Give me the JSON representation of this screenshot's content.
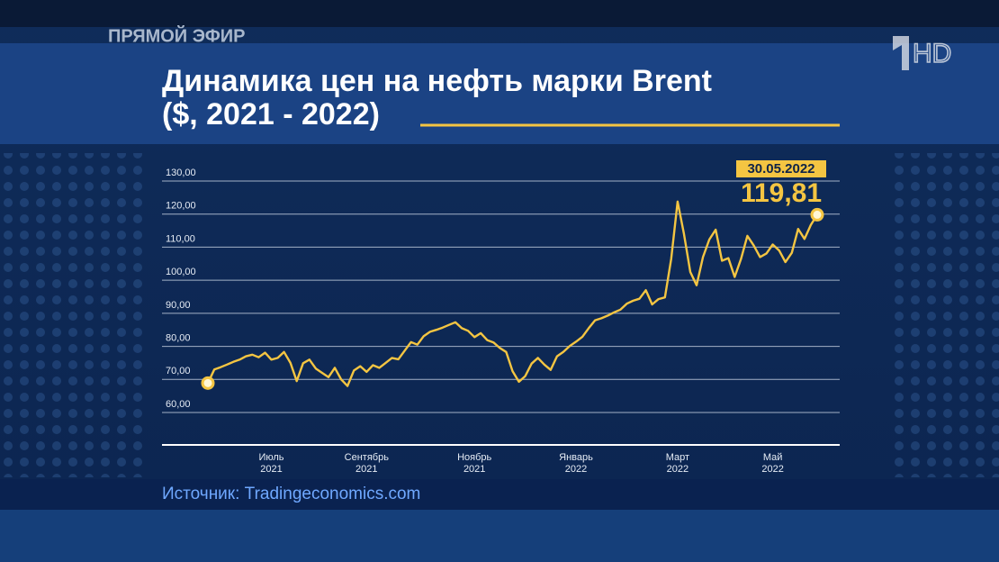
{
  "header": {
    "live": "ПРЯМОЙ ЭФИР",
    "channel": "HD"
  },
  "chart_data": {
    "type": "line",
    "title": "Динамика цен на нефть марки Brent",
    "subtitle": "($, 2021 - 2022)",
    "categories": [
      null,
      null,
      null,
      null,
      null,
      null,
      null,
      null,
      null,
      null,
      "Июль 2021",
      null,
      null,
      null,
      null,
      null,
      null,
      null,
      null,
      null,
      null,
      null,
      null,
      null,
      null,
      "Сентябрь 2021",
      null,
      null,
      null,
      null,
      null,
      null,
      null,
      null,
      null,
      null,
      null,
      null,
      null,
      null,
      null,
      null,
      "Ноябрь 2021",
      null,
      null,
      null,
      null,
      null,
      null,
      null,
      null,
      null,
      null,
      null,
      null,
      null,
      null,
      null,
      "Январь 2022",
      null,
      null,
      null,
      null,
      null,
      null,
      null,
      null,
      null,
      null,
      null,
      null,
      null,
      null,
      null,
      "Март 2022",
      null,
      null,
      null,
      null,
      null,
      null,
      null,
      null,
      null,
      null,
      null,
      null,
      null,
      null,
      "Май 2022",
      null,
      null,
      null,
      null,
      null,
      null,
      null
    ],
    "values": [
      68.9,
      73.0,
      73.7,
      74.5,
      75.3,
      76.0,
      77.0,
      77.5,
      76.7,
      78.1,
      76.0,
      76.5,
      78.3,
      75.0,
      69.5,
      74.9,
      76.0,
      73.3,
      72.0,
      70.7,
      73.5,
      70.0,
      68.0,
      72.7,
      74.0,
      72.3,
      74.3,
      73.5,
      75.0,
      76.5,
      76.1,
      78.7,
      81.3,
      80.5,
      83.1,
      84.4,
      85.0,
      85.7,
      86.5,
      87.3,
      85.5,
      84.7,
      82.8,
      84.0,
      81.9,
      81.2,
      79.5,
      78.3,
      72.5,
      69.3,
      71.0,
      74.8,
      76.5,
      74.5,
      72.9,
      77.0,
      78.3,
      80.1,
      81.4,
      82.9,
      85.5,
      87.9,
      88.5,
      89.3,
      90.3,
      91.1,
      92.9,
      93.8,
      94.4,
      97.0,
      92.7,
      94.3,
      94.8,
      106.5,
      123.8,
      114.1,
      102.5,
      98.5,
      107.0,
      112.3,
      115.3,
      105.9,
      106.7,
      101.0,
      106.5,
      113.4,
      110.5,
      107.0,
      108.1,
      110.8,
      109.0,
      105.5,
      108.3,
      115.5,
      112.5,
      116.7,
      119.81
    ],
    "color": "#f4c542",
    "ylim": [
      50.2,
      130
    ],
    "yticks": [
      {
        "value": 60,
        "label": "60,00"
      },
      {
        "value": 70,
        "label": "70,00"
      },
      {
        "value": 80,
        "label": "80,00"
      },
      {
        "value": 90,
        "label": "90,00"
      },
      {
        "value": 100,
        "label": "100,00"
      },
      {
        "value": 110,
        "label": "110,00"
      },
      {
        "value": 120,
        "label": "120,00"
      },
      {
        "value": 130,
        "label": "130,00"
      }
    ],
    "grid": true,
    "annotations": [
      {
        "label": "30.05.2022"
      },
      {
        "label": "119,81"
      }
    ]
  },
  "source": "Источник: Tradingeconomics.com"
}
